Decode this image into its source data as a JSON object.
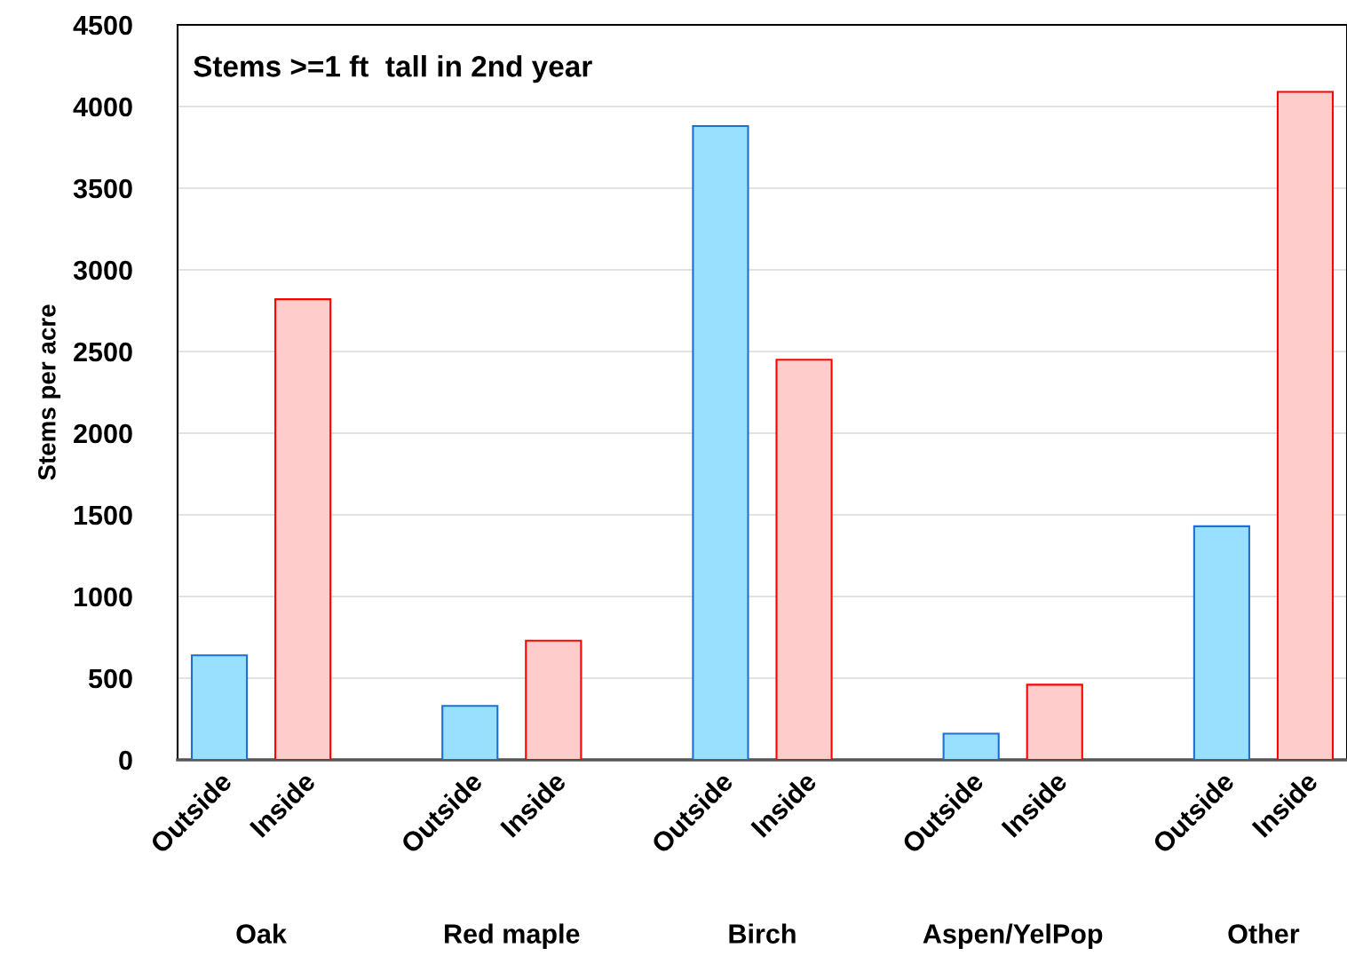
{
  "chart_data": {
    "type": "bar",
    "title": "Stems >=1 ft  tall in 2nd year",
    "ylabel": "Stems per acre",
    "categories": [
      "Outside",
      "Inside",
      null,
      "Outside",
      "Inside",
      null,
      "Outside",
      "Inside",
      null,
      "Outside",
      "Inside",
      null,
      "Outside",
      "Inside"
    ],
    "values": [
      640,
      2820,
      null,
      330,
      730,
      null,
      3880,
      2450,
      null,
      160,
      460,
      null,
      1430,
      4090
    ],
    "colors": [
      "#99e0ff",
      "#ffcccc",
      null,
      "#99e0ff",
      "#ffcccc",
      null,
      "#99e0ff",
      "#ffcccc",
      null,
      "#99e0ff",
      "#ffcccc",
      null,
      "#99e0ff",
      "#ffcccc"
    ],
    "annotations": [
      "Oak",
      "Red maple",
      "Birch",
      "Aspen/YelPop",
      "Other"
    ],
    "ylim": [
      0,
      4500
    ],
    "yticks": [
      0,
      500,
      1000,
      1500,
      2000,
      2500,
      3000,
      3500,
      4000,
      4500
    ],
    "grid": "y"
  }
}
